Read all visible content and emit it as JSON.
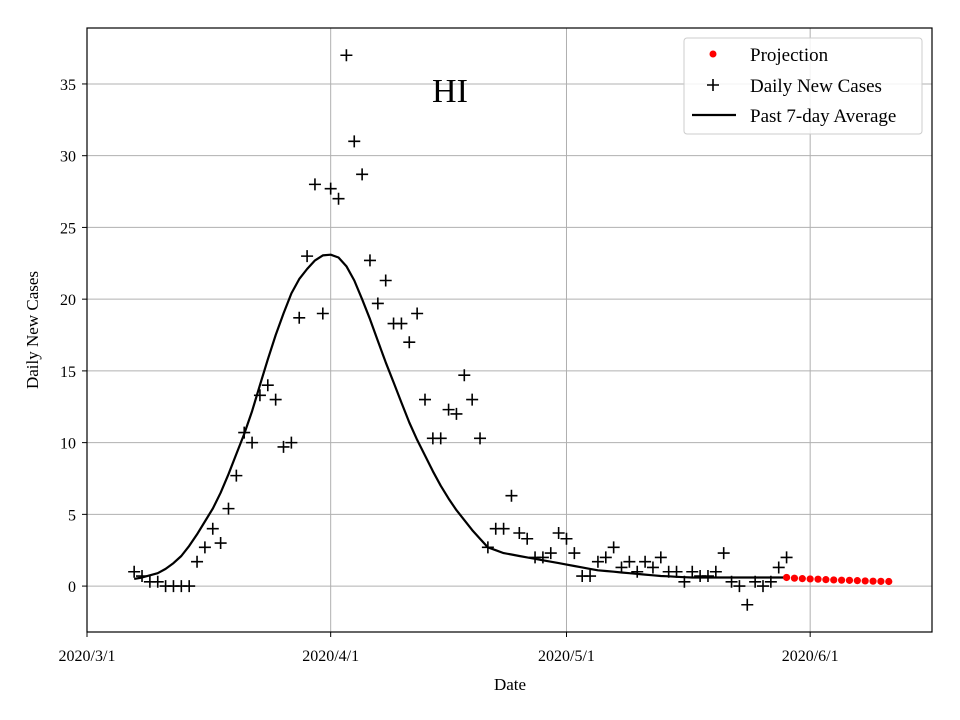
{
  "chart_data": {
    "type": "scatter",
    "title": "HI",
    "xlabel": "Date",
    "ylabel": "Daily New Cases",
    "xlim": [
      0,
      107.5
    ],
    "ylim": [
      -3.2,
      38.9
    ],
    "grid": true,
    "legend_position": "top-right",
    "x_ticks": [
      {
        "label": "2020/3/1",
        "day": 0
      },
      {
        "label": "2020/4/1",
        "day": 31
      },
      {
        "label": "2020/5/1",
        "day": 61
      },
      {
        "label": "2020/6/1",
        "day": 92
      }
    ],
    "y_ticks": [
      0,
      5,
      10,
      15,
      20,
      25,
      30,
      35
    ],
    "legend": [
      {
        "key": "projection",
        "label": "Projection",
        "color": "#ff0000"
      },
      {
        "key": "daily",
        "label": "Daily New Cases",
        "color": "#000000"
      },
      {
        "key": "average",
        "label": "Past 7-day Average",
        "color": "#000000"
      }
    ],
    "series": [
      {
        "name": "Daily New Cases",
        "marker": "+",
        "color": "#000000",
        "x": [
          6,
          7,
          8,
          9,
          10,
          11,
          12,
          13,
          14,
          15,
          16,
          17,
          18,
          19,
          20,
          21,
          22,
          23,
          24,
          25,
          26,
          27,
          28,
          29,
          30,
          31,
          32,
          33,
          34,
          35,
          36,
          37,
          38,
          39,
          40,
          41,
          42,
          43,
          44,
          45,
          46,
          47,
          48,
          49,
          50,
          51,
          52,
          53,
          54,
          55,
          56,
          57,
          58,
          59,
          60,
          61,
          62,
          63,
          64,
          65,
          66,
          67,
          68,
          69,
          70,
          71,
          72,
          73,
          74,
          75,
          76,
          77,
          78,
          79,
          80,
          81,
          82,
          83,
          84,
          85,
          86,
          87,
          88,
          89
        ],
        "y": [
          1,
          0.7,
          0.3,
          0.3,
          0,
          0,
          0,
          0,
          1.7,
          2.7,
          4,
          3,
          5.4,
          7.7,
          10.7,
          10,
          13.3,
          14,
          13,
          9.7,
          10,
          18.7,
          23,
          28,
          19,
          27.7,
          27,
          37,
          31,
          28.7,
          22.7,
          19.7,
          21.3,
          18.3,
          18.3,
          17,
          19,
          13,
          10.3,
          10.3,
          12.3,
          12,
          14.7,
          13,
          10.3,
          2.7,
          4,
          4,
          6.3,
          3.7,
          3.3,
          2,
          2,
          2.3,
          3.7,
          3.3,
          2.3,
          0.7,
          0.7,
          1.7,
          2,
          2.7,
          1.3,
          1.7,
          1,
          1.7,
          1.3,
          2,
          1,
          1,
          0.3,
          1,
          0.7,
          0.7,
          1,
          2.3,
          0.3,
          0,
          -1.3,
          0.3,
          0,
          0.3,
          1.3,
          2
        ]
      },
      {
        "name": "Past 7-day Average",
        "type": "line",
        "color": "#000000",
        "x": [
          6,
          7,
          8,
          9,
          10,
          11,
          12,
          13,
          14,
          15,
          16,
          17,
          18,
          19,
          20,
          21,
          22,
          23,
          24,
          25,
          26,
          27,
          28,
          29,
          30,
          31,
          32,
          33,
          34,
          35,
          36,
          37,
          38,
          39,
          40,
          41,
          42,
          43,
          44,
          45,
          46,
          47,
          48,
          49,
          50,
          51,
          52,
          53,
          54,
          55,
          56,
          57,
          58,
          59,
          60,
          61,
          62,
          63,
          64,
          65,
          66,
          67,
          68,
          69,
          70,
          71,
          72,
          73,
          74,
          75,
          76,
          77,
          78,
          79,
          80,
          81,
          82,
          83,
          84,
          85,
          86,
          87,
          88,
          89
        ],
        "y": [
          0.5,
          0.6,
          0.75,
          0.9,
          1.2,
          1.6,
          2.1,
          2.8,
          3.6,
          4.5,
          5.4,
          6.5,
          7.8,
          9.2,
          10.6,
          12.2,
          14,
          15.8,
          17.5,
          19,
          20.4,
          21.4,
          22.1,
          22.7,
          23.05,
          23.1,
          22.9,
          22.3,
          21.3,
          20,
          18.6,
          17.1,
          15.6,
          14.2,
          12.8,
          11.4,
          10.2,
          9.1,
          8,
          7,
          6.1,
          5.3,
          4.6,
          3.9,
          3.3,
          2.7,
          2.5,
          2.3,
          2.2,
          2.1,
          2,
          1.9,
          1.8,
          1.7,
          1.6,
          1.5,
          1.4,
          1.3,
          1.2,
          1.1,
          1.05,
          1,
          0.95,
          0.9,
          0.85,
          0.8,
          0.75,
          0.7,
          0.68,
          0.65,
          0.62,
          0.6,
          0.6,
          0.6,
          0.6,
          0.6,
          0.6,
          0.6,
          0.6,
          0.6,
          0.6,
          0.6,
          0.6,
          0.6
        ]
      },
      {
        "name": "Projection",
        "marker": "o",
        "color": "#ff0000",
        "x": [
          89,
          90,
          91,
          92,
          93,
          94,
          95,
          96,
          97,
          98,
          99,
          100,
          101,
          102
        ],
        "y": [
          0.6,
          0.55,
          0.52,
          0.5,
          0.48,
          0.45,
          0.43,
          0.41,
          0.4,
          0.38,
          0.36,
          0.34,
          0.33,
          0.32
        ]
      }
    ]
  }
}
